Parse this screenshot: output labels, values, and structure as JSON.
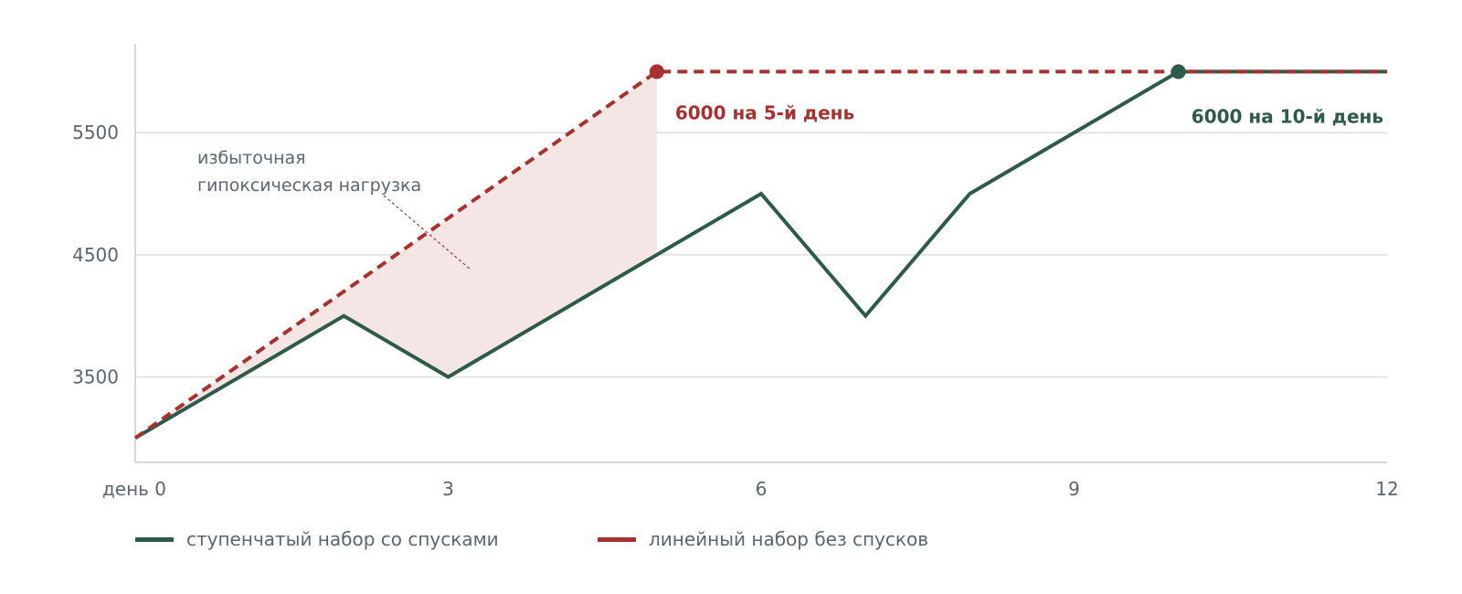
{
  "chart_data": {
    "type": "line",
    "xlim": [
      0,
      12
    ],
    "ylim": [
      2800,
      6250
    ],
    "x_ticks": [
      {
        "value": 0,
        "label": "день 0"
      },
      {
        "value": 3,
        "label": "3"
      },
      {
        "value": 6,
        "label": "6"
      },
      {
        "value": 9,
        "label": "9"
      },
      {
        "value": 12,
        "label": "12"
      }
    ],
    "y_ticks": [
      {
        "value": 3500,
        "label": "3500"
      },
      {
        "value": 4500,
        "label": "4500"
      },
      {
        "value": 5500,
        "label": "5500"
      }
    ],
    "grid": true,
    "series": [
      {
        "name": "ступенчатый набор со спусками",
        "color": "#2e5a48",
        "style": "solid",
        "points": [
          [
            0,
            3000
          ],
          [
            2,
            4000
          ],
          [
            3,
            3500
          ],
          [
            5,
            4500
          ],
          [
            6,
            5000
          ],
          [
            7,
            4000
          ],
          [
            8,
            5000
          ],
          [
            10,
            6000
          ],
          [
            12,
            6000
          ]
        ]
      },
      {
        "name": "линейный набор без спусков",
        "color": "#a8302f",
        "style": "dashed",
        "points": [
          [
            0,
            3000
          ],
          [
            5,
            6000
          ],
          [
            12,
            6000
          ]
        ]
      }
    ],
    "markers": [
      {
        "series": 1,
        "x": 5,
        "y": 6000,
        "color": "#a8302f",
        "label": "6000 на 5-й день"
      },
      {
        "series": 0,
        "x": 10,
        "y": 6000,
        "color": "#2e5a48",
        "label": "6000 на 10-й день"
      }
    ],
    "shaded_region": {
      "x_from": 0,
      "x_to": 5,
      "color": "#f3e3e1"
    },
    "annotation": {
      "lines": [
        "избыточная",
        "гипоксическая нагрузка"
      ]
    },
    "legend": {
      "position": "bottom-left"
    }
  }
}
